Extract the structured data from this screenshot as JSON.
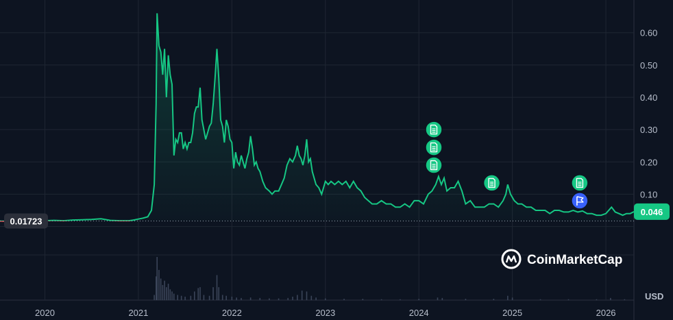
{
  "chart_data": {
    "type": "area",
    "title": "",
    "xlabel": "",
    "ylabel": "",
    "currency_label": "USD",
    "brand": "CoinMarketCap",
    "y_ticks": [
      "0.10",
      "0.20",
      "0.30",
      "0.40",
      "0.50",
      "0.60"
    ],
    "ylim": [
      -0.02,
      0.68
    ],
    "x_ticks": [
      {
        "label": "2020",
        "x": 2020.0
      },
      {
        "label": "2021",
        "x": 2021.0
      },
      {
        "label": "2022",
        "x": 2022.0
      },
      {
        "label": "2023",
        "x": 2023.0
      },
      {
        "label": "2024",
        "x": 2024.0
      },
      {
        "label": "2025",
        "x": 2025.0
      },
      {
        "label": "2026",
        "x": 2026.0
      }
    ],
    "xlim": [
      2019.52,
      2026.3
    ],
    "start_price_label": "0.01723",
    "start_price": 0.01723,
    "current_price_label": "0.046",
    "current_price": 0.046,
    "colors": {
      "up": "#16c784",
      "down": "#ea3943",
      "flag": "#3861fb",
      "background": "#0d1421"
    },
    "series": [
      {
        "values": [
          [
            2019.52,
            0.017
          ],
          [
            2019.6,
            0.016
          ],
          [
            2019.7,
            0.019
          ],
          [
            2019.78,
            0.015
          ],
          [
            2019.9,
            0.017
          ],
          [
            2020.0,
            0.018
          ],
          [
            2020.1,
            0.019
          ],
          [
            2020.2,
            0.018
          ],
          [
            2020.3,
            0.02
          ],
          [
            2020.4,
            0.021
          ],
          [
            2020.5,
            0.022
          ],
          [
            2020.6,
            0.024
          ],
          [
            2020.7,
            0.019
          ],
          [
            2020.8,
            0.018
          ],
          [
            2020.9,
            0.018
          ],
          [
            2020.95,
            0.02
          ],
          [
            2021.0,
            0.023
          ],
          [
            2021.05,
            0.026
          ],
          [
            2021.1,
            0.03
          ],
          [
            2021.14,
            0.05
          ],
          [
            2021.17,
            0.13
          ],
          [
            2021.19,
            0.38
          ],
          [
            2021.2,
            0.66
          ],
          [
            2021.22,
            0.56
          ],
          [
            2021.24,
            0.54
          ],
          [
            2021.26,
            0.47
          ],
          [
            2021.28,
            0.55
          ],
          [
            2021.3,
            0.4
          ],
          [
            2021.32,
            0.53
          ],
          [
            2021.34,
            0.47
          ],
          [
            2021.36,
            0.44
          ],
          [
            2021.38,
            0.22
          ],
          [
            2021.4,
            0.27
          ],
          [
            2021.42,
            0.26
          ],
          [
            2021.44,
            0.29
          ],
          [
            2021.46,
            0.29
          ],
          [
            2021.48,
            0.24
          ],
          [
            2021.5,
            0.26
          ],
          [
            2021.52,
            0.24
          ],
          [
            2021.54,
            0.26
          ],
          [
            2021.56,
            0.26
          ],
          [
            2021.58,
            0.29
          ],
          [
            2021.6,
            0.35
          ],
          [
            2021.62,
            0.37
          ],
          [
            2021.64,
            0.37
          ],
          [
            2021.66,
            0.43
          ],
          [
            2021.68,
            0.33
          ],
          [
            2021.7,
            0.3
          ],
          [
            2021.72,
            0.27
          ],
          [
            2021.74,
            0.29
          ],
          [
            2021.76,
            0.31
          ],
          [
            2021.78,
            0.32
          ],
          [
            2021.8,
            0.38
          ],
          [
            2021.82,
            0.46
          ],
          [
            2021.84,
            0.55
          ],
          [
            2021.86,
            0.46
          ],
          [
            2021.88,
            0.33
          ],
          [
            2021.9,
            0.31
          ],
          [
            2021.92,
            0.26
          ],
          [
            2021.94,
            0.33
          ],
          [
            2021.96,
            0.31
          ],
          [
            2021.98,
            0.27
          ],
          [
            2022.0,
            0.26
          ],
          [
            2022.02,
            0.18
          ],
          [
            2022.04,
            0.23
          ],
          [
            2022.06,
            0.2
          ],
          [
            2022.08,
            0.19
          ],
          [
            2022.1,
            0.22
          ],
          [
            2022.12,
            0.2
          ],
          [
            2022.14,
            0.18
          ],
          [
            2022.16,
            0.21
          ],
          [
            2022.18,
            0.23
          ],
          [
            2022.2,
            0.28
          ],
          [
            2022.22,
            0.24
          ],
          [
            2022.24,
            0.19
          ],
          [
            2022.26,
            0.2
          ],
          [
            2022.28,
            0.18
          ],
          [
            2022.3,
            0.17
          ],
          [
            2022.33,
            0.14
          ],
          [
            2022.36,
            0.12
          ],
          [
            2022.4,
            0.11
          ],
          [
            2022.43,
            0.1
          ],
          [
            2022.46,
            0.11
          ],
          [
            2022.5,
            0.11
          ],
          [
            2022.53,
            0.13
          ],
          [
            2022.56,
            0.15
          ],
          [
            2022.59,
            0.19
          ],
          [
            2022.62,
            0.21
          ],
          [
            2022.65,
            0.2
          ],
          [
            2022.68,
            0.22
          ],
          [
            2022.7,
            0.25
          ],
          [
            2022.72,
            0.22
          ],
          [
            2022.74,
            0.21
          ],
          [
            2022.76,
            0.19
          ],
          [
            2022.78,
            0.22
          ],
          [
            2022.8,
            0.27
          ],
          [
            2022.82,
            0.2
          ],
          [
            2022.84,
            0.21
          ],
          [
            2022.86,
            0.17
          ],
          [
            2022.88,
            0.15
          ],
          [
            2022.9,
            0.13
          ],
          [
            2022.93,
            0.12
          ],
          [
            2022.96,
            0.1
          ],
          [
            2023.0,
            0.14
          ],
          [
            2023.03,
            0.13
          ],
          [
            2023.06,
            0.14
          ],
          [
            2023.1,
            0.13
          ],
          [
            2023.14,
            0.14
          ],
          [
            2023.18,
            0.13
          ],
          [
            2023.22,
            0.14
          ],
          [
            2023.26,
            0.12
          ],
          [
            2023.3,
            0.14
          ],
          [
            2023.34,
            0.12
          ],
          [
            2023.38,
            0.11
          ],
          [
            2023.42,
            0.09
          ],
          [
            2023.46,
            0.08
          ],
          [
            2023.5,
            0.07
          ],
          [
            2023.55,
            0.07
          ],
          [
            2023.6,
            0.08
          ],
          [
            2023.65,
            0.07
          ],
          [
            2023.7,
            0.07
          ],
          [
            2023.75,
            0.06
          ],
          [
            2023.8,
            0.06
          ],
          [
            2023.85,
            0.07
          ],
          [
            2023.9,
            0.06
          ],
          [
            2023.95,
            0.08
          ],
          [
            2024.0,
            0.08
          ],
          [
            2024.05,
            0.07
          ],
          [
            2024.1,
            0.1
          ],
          [
            2024.14,
            0.11
          ],
          [
            2024.18,
            0.13
          ],
          [
            2024.21,
            0.155
          ],
          [
            2024.24,
            0.13
          ],
          [
            2024.27,
            0.15
          ],
          [
            2024.3,
            0.11
          ],
          [
            2024.34,
            0.12
          ],
          [
            2024.38,
            0.12
          ],
          [
            2024.42,
            0.14
          ],
          [
            2024.46,
            0.11
          ],
          [
            2024.5,
            0.07
          ],
          [
            2024.55,
            0.08
          ],
          [
            2024.6,
            0.06
          ],
          [
            2024.65,
            0.06
          ],
          [
            2024.7,
            0.06
          ],
          [
            2024.75,
            0.07
          ],
          [
            2024.8,
            0.07
          ],
          [
            2024.85,
            0.06
          ],
          [
            2024.9,
            0.08
          ],
          [
            2024.93,
            0.1
          ],
          [
            2024.95,
            0.13
          ],
          [
            2024.98,
            0.1
          ],
          [
            2025.02,
            0.08
          ],
          [
            2025.06,
            0.07
          ],
          [
            2025.1,
            0.07
          ],
          [
            2025.15,
            0.06
          ],
          [
            2025.2,
            0.06
          ],
          [
            2025.25,
            0.05
          ],
          [
            2025.3,
            0.05
          ],
          [
            2025.35,
            0.05
          ],
          [
            2025.4,
            0.04
          ],
          [
            2025.45,
            0.05
          ],
          [
            2025.5,
            0.05
          ],
          [
            2025.55,
            0.045
          ],
          [
            2025.6,
            0.045
          ],
          [
            2025.65,
            0.05
          ],
          [
            2025.7,
            0.045
          ],
          [
            2025.75,
            0.048
          ],
          [
            2025.8,
            0.04
          ],
          [
            2025.85,
            0.04
          ],
          [
            2025.9,
            0.035
          ],
          [
            2025.95,
            0.035
          ],
          [
            2026.0,
            0.04
          ],
          [
            2026.03,
            0.05
          ],
          [
            2026.06,
            0.06
          ],
          [
            2026.1,
            0.045
          ],
          [
            2026.14,
            0.04
          ],
          [
            2026.18,
            0.035
          ],
          [
            2026.22,
            0.04
          ],
          [
            2026.26,
            0.04
          ],
          [
            2026.3,
            0.046
          ]
        ]
      }
    ],
    "volume": [
      [
        2021.17,
        0.12
      ],
      [
        2021.19,
        0.55
      ],
      [
        2021.2,
        1.0
      ],
      [
        2021.22,
        0.7
      ],
      [
        2021.24,
        0.5
      ],
      [
        2021.26,
        0.35
      ],
      [
        2021.28,
        0.45
      ],
      [
        2021.3,
        0.3
      ],
      [
        2021.32,
        0.38
      ],
      [
        2021.34,
        0.25
      ],
      [
        2021.36,
        0.2
      ],
      [
        2021.38,
        0.15
      ],
      [
        2021.42,
        0.12
      ],
      [
        2021.46,
        0.1
      ],
      [
        2021.5,
        0.08
      ],
      [
        2021.56,
        0.1
      ],
      [
        2021.6,
        0.2
      ],
      [
        2021.64,
        0.28
      ],
      [
        2021.66,
        0.3
      ],
      [
        2021.7,
        0.12
      ],
      [
        2021.76,
        0.1
      ],
      [
        2021.8,
        0.3
      ],
      [
        2021.84,
        0.58
      ],
      [
        2021.86,
        0.3
      ],
      [
        2021.9,
        0.12
      ],
      [
        2021.94,
        0.1
      ],
      [
        2022.0,
        0.08
      ],
      [
        2022.05,
        0.06
      ],
      [
        2022.1,
        0.05
      ],
      [
        2022.2,
        0.06
      ],
      [
        2022.3,
        0.05
      ],
      [
        2022.4,
        0.04
      ],
      [
        2022.5,
        0.04
      ],
      [
        2022.6,
        0.05
      ],
      [
        2022.65,
        0.08
      ],
      [
        2022.7,
        0.12
      ],
      [
        2022.75,
        0.22
      ],
      [
        2022.8,
        0.2
      ],
      [
        2022.85,
        0.1
      ],
      [
        2022.9,
        0.06
      ],
      [
        2023.0,
        0.04
      ],
      [
        2023.2,
        0.03
      ],
      [
        2023.4,
        0.03
      ],
      [
        2023.6,
        0.02
      ],
      [
        2023.8,
        0.02
      ],
      [
        2024.0,
        0.03
      ],
      [
        2024.2,
        0.06
      ],
      [
        2024.25,
        0.05
      ],
      [
        2024.5,
        0.03
      ],
      [
        2024.8,
        0.03
      ],
      [
        2024.95,
        0.1
      ],
      [
        2025.0,
        0.06
      ],
      [
        2025.3,
        0.02
      ],
      [
        2025.6,
        0.02
      ],
      [
        2025.9,
        0.02
      ],
      [
        2026.05,
        0.05
      ],
      [
        2026.2,
        0.02
      ]
    ],
    "event_markers": [
      {
        "x": 2024.16,
        "y": 0.3,
        "type": "document"
      },
      {
        "x": 2024.16,
        "y": 0.245,
        "type": "document"
      },
      {
        "x": 2024.16,
        "y": 0.19,
        "type": "document"
      },
      {
        "x": 2024.78,
        "y": 0.135,
        "type": "document"
      },
      {
        "x": 2025.72,
        "y": 0.135,
        "type": "document"
      },
      {
        "x": 2025.72,
        "y": 0.08,
        "type": "flag"
      }
    ]
  }
}
